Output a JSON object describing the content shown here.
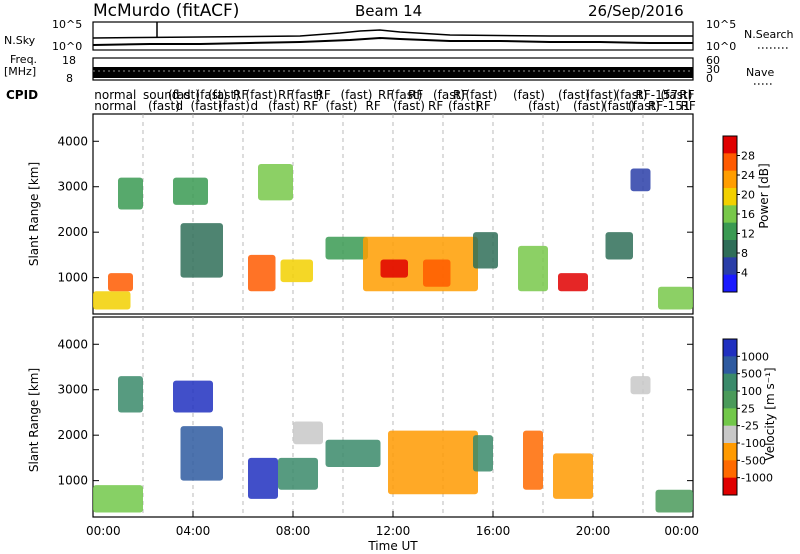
{
  "header": {
    "station": "McMurdo (fitACF)",
    "beam": "Beam 14",
    "date": "26/Sep/2016"
  },
  "noise_panel": {
    "left_label": "N.Sky",
    "right_label": "N.Search",
    "left_ticks": [
      "10^5",
      "10^0"
    ],
    "right_ticks": [
      "10^5",
      "10^0"
    ]
  },
  "freq_panel": {
    "left_label_1": "Freq.",
    "left_label_2": "[MHz]",
    "right_label": "Nave",
    "left_ticks": [
      "18",
      "8"
    ],
    "right_ticks": [
      "60",
      "30",
      "0"
    ]
  },
  "cpid": {
    "label": "CPID",
    "row1": [
      {
        "text": "normal",
        "hour": 0.05
      },
      {
        "text": "sound",
        "hour": 2.0
      },
      {
        "text": "(fast)",
        "hour": 3.0
      },
      {
        "text": "d",
        "hour": 3.6
      },
      {
        "text": "(fast)",
        "hour": 4.1
      },
      {
        "text": "(fast)",
        "hour": 4.6
      },
      {
        "text": "RF",
        "hour": 5.6
      },
      {
        "text": "(fast)",
        "hour": 6.1
      },
      {
        "text": "RF",
        "hour": 7.4
      },
      {
        "text": "(fast)",
        "hour": 7.9
      },
      {
        "text": "RF",
        "hour": 8.9
      },
      {
        "text": "(fast)",
        "hour": 9.9
      },
      {
        "text": "RF",
        "hour": 11.4
      },
      {
        "text": "(fast)",
        "hour": 11.9
      },
      {
        "text": "RF",
        "hour": 12.6
      },
      {
        "text": "(fast)",
        "hour": 13.6
      },
      {
        "text": "RF",
        "hour": 14.4
      },
      {
        "text": "(fast)",
        "hour": 14.9
      },
      {
        "text": "(fast)",
        "hour": 16.8
      },
      {
        "text": "(fast)",
        "hour": 18.6
      },
      {
        "text": "(fast)",
        "hour": 19.7
      },
      {
        "text": "(fast)",
        "hour": 20.9
      },
      {
        "text": "RF-157",
        "hour": 21.7
      },
      {
        "text": "(fast)",
        "hour": 22.7
      },
      {
        "text": "RF",
        "hour": 23.45
      }
    ],
    "row2": [
      {
        "text": "normal",
        "hour": 0.05
      },
      {
        "text": "(fast)",
        "hour": 2.2
      },
      {
        "text": "d",
        "hour": 3.3
      },
      {
        "text": "(fast)",
        "hour": 3.9
      },
      {
        "text": "(fast)",
        "hour": 5.0
      },
      {
        "text": "d",
        "hour": 6.3
      },
      {
        "text": "(fast)",
        "hour": 7.0
      },
      {
        "text": "RF",
        "hour": 8.4
      },
      {
        "text": "(fast)",
        "hour": 9.3
      },
      {
        "text": "RF",
        "hour": 10.9
      },
      {
        "text": "(fast)",
        "hour": 12.0
      },
      {
        "text": "RF",
        "hour": 13.4
      },
      {
        "text": "(fast)",
        "hour": 14.2
      },
      {
        "text": "RF",
        "hour": 15.3
      },
      {
        "text": "(fast)",
        "hour": 17.4
      },
      {
        "text": "(fast)",
        "hour": 19.2
      },
      {
        "text": "(fast)",
        "hour": 20.4
      },
      {
        "text": "(fast)",
        "hour": 21.4
      },
      {
        "text": "RF-151",
        "hour": 22.2
      },
      {
        "text": "RF",
        "hour": 23.5
      }
    ]
  },
  "chart_data": [
    {
      "type": "heatmap",
      "name": "power",
      "ylabel": "Slant Range [km]",
      "ylim": [
        200,
        4600
      ],
      "yticks": [
        1000,
        2000,
        3000,
        4000
      ],
      "xlim": [
        0,
        24
      ],
      "colorbar": {
        "label": "Power [dB]",
        "ticks": [
          "28",
          "24",
          "20",
          "16",
          "12",
          "8",
          "4"
        ],
        "colors": [
          "#e00000",
          "#ff5a00",
          "#ff9d00",
          "#f2d000",
          "#78c84a",
          "#3a9a52",
          "#2f6e58",
          "#2a3ea8",
          "#1a1aff"
        ]
      },
      "patches": [
        {
          "t0": 0.0,
          "t1": 1.5,
          "r0": 300,
          "r1": 700,
          "level": 3
        },
        {
          "t0": 0.6,
          "t1": 1.6,
          "r0": 700,
          "r1": 1100,
          "level": 1
        },
        {
          "t0": 1.0,
          "t1": 2.0,
          "r0": 2500,
          "r1": 3200,
          "level": 5
        },
        {
          "t0": 3.2,
          "t1": 4.6,
          "r0": 2600,
          "r1": 3200,
          "level": 5
        },
        {
          "t0": 3.5,
          "t1": 5.2,
          "r0": 1000,
          "r1": 2200,
          "level": 6
        },
        {
          "t0": 6.2,
          "t1": 7.3,
          "r0": 700,
          "r1": 1500,
          "level": 1
        },
        {
          "t0": 6.6,
          "t1": 8.0,
          "r0": 2700,
          "r1": 3500,
          "level": 4
        },
        {
          "t0": 7.5,
          "t1": 8.8,
          "r0": 900,
          "r1": 1400,
          "level": 3
        },
        {
          "t0": 9.3,
          "t1": 11.0,
          "r0": 1400,
          "r1": 1900,
          "level": 5
        },
        {
          "t0": 10.8,
          "t1": 15.4,
          "r0": 700,
          "r1": 1900,
          "level": 2
        },
        {
          "t0": 11.5,
          "t1": 12.6,
          "r0": 1000,
          "r1": 1400,
          "level": 0
        },
        {
          "t0": 13.2,
          "t1": 14.3,
          "r0": 800,
          "r1": 1400,
          "level": 1
        },
        {
          "t0": 15.2,
          "t1": 16.2,
          "r0": 1200,
          "r1": 2000,
          "level": 6
        },
        {
          "t0": 17.0,
          "t1": 18.2,
          "r0": 700,
          "r1": 1700,
          "level": 4
        },
        {
          "t0": 18.6,
          "t1": 19.8,
          "r0": 700,
          "r1": 1100,
          "level": 0
        },
        {
          "t0": 20.5,
          "t1": 21.6,
          "r0": 1400,
          "r1": 2000,
          "level": 6
        },
        {
          "t0": 21.5,
          "t1": 22.3,
          "r0": 2900,
          "r1": 3400,
          "level": 7
        },
        {
          "t0": 22.6,
          "t1": 24.0,
          "r0": 300,
          "r1": 800,
          "level": 4
        }
      ]
    },
    {
      "type": "heatmap",
      "name": "velocity",
      "ylabel": "Slant Range [km]",
      "ylim": [
        200,
        4600
      ],
      "yticks": [
        1000,
        2000,
        3000,
        4000
      ],
      "xlim": [
        0,
        24
      ],
      "xlabel": "Time UT",
      "xticks": [
        "00:00",
        "04:00",
        "08:00",
        "12:00",
        "16:00",
        "20:00",
        "00:00"
      ],
      "colorbar": {
        "label": "Velocity [m s⁻¹]",
        "ticks": [
          "1000",
          "500",
          "100",
          "25",
          "-25",
          "-100",
          "-500",
          "-1000"
        ],
        "colors": [
          "#2030c0",
          "#2e5aa0",
          "#3a8a6a",
          "#4a9a5a",
          "#72c84a",
          "#c8c8c8",
          "#ff9a00",
          "#ff6a00",
          "#e00000"
        ]
      },
      "patches": [
        {
          "t0": 0.0,
          "t1": 2.0,
          "r0": 300,
          "r1": 900,
          "level": 4
        },
        {
          "t0": 1.0,
          "t1": 2.0,
          "r0": 2500,
          "r1": 3300,
          "level": 2
        },
        {
          "t0": 3.2,
          "t1": 4.8,
          "r0": 2500,
          "r1": 3200,
          "level": 0
        },
        {
          "t0": 3.5,
          "t1": 5.2,
          "r0": 1000,
          "r1": 2200,
          "level": 1
        },
        {
          "t0": 6.2,
          "t1": 7.4,
          "r0": 600,
          "r1": 1500,
          "level": 0
        },
        {
          "t0": 7.4,
          "t1": 9.0,
          "r0": 800,
          "r1": 1500,
          "level": 2
        },
        {
          "t0": 8.0,
          "t1": 9.2,
          "r0": 1800,
          "r1": 2300,
          "level": 5
        },
        {
          "t0": 9.3,
          "t1": 11.5,
          "r0": 1300,
          "r1": 1900,
          "level": 2
        },
        {
          "t0": 11.8,
          "t1": 15.4,
          "r0": 700,
          "r1": 2100,
          "level": 6
        },
        {
          "t0": 15.2,
          "t1": 16.0,
          "r0": 1200,
          "r1": 2000,
          "level": 2
        },
        {
          "t0": 17.2,
          "t1": 18.0,
          "r0": 800,
          "r1": 2100,
          "level": 7
        },
        {
          "t0": 18.4,
          "t1": 20.0,
          "r0": 600,
          "r1": 1600,
          "level": 6
        },
        {
          "t0": 21.5,
          "t1": 22.3,
          "r0": 2900,
          "r1": 3300,
          "level": 5
        },
        {
          "t0": 22.5,
          "t1": 24.0,
          "r0": 300,
          "r1": 800,
          "level": 3
        }
      ]
    }
  ]
}
